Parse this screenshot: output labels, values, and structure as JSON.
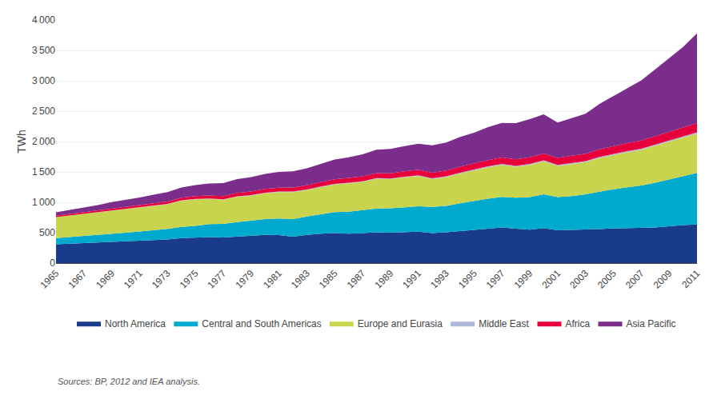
{
  "chart_data": {
    "type": "area",
    "stacked": true,
    "ylabel": "TWh",
    "annotations": [
      "Sources: BP, 2012 and IEA analysis."
    ],
    "x": [
      1965,
      1966,
      1967,
      1968,
      1969,
      1970,
      1971,
      1972,
      1973,
      1974,
      1975,
      1976,
      1977,
      1978,
      1979,
      1980,
      1981,
      1982,
      1983,
      1984,
      1985,
      1986,
      1987,
      1988,
      1989,
      1990,
      1991,
      1992,
      1993,
      1994,
      1995,
      1996,
      1997,
      1998,
      1999,
      2000,
      2001,
      2002,
      2003,
      2004,
      2005,
      2006,
      2007,
      2008,
      2009,
      2010,
      2011
    ],
    "series": [
      {
        "name": "North America",
        "color": "#1a3a8a",
        "values": [
          310,
          320,
          328,
          340,
          350,
          360,
          370,
          382,
          388,
          410,
          415,
          428,
          422,
          438,
          448,
          465,
          460,
          435,
          465,
          485,
          495,
          485,
          495,
          505,
          500,
          505,
          515,
          495,
          505,
          525,
          545,
          570,
          585,
          565,
          550,
          575,
          540,
          545,
          550,
          560,
          570,
          575,
          575,
          585,
          605,
          625,
          635
        ]
      },
      {
        "name": "Central and South Americas",
        "color": "#00a9ce",
        "values": [
          100,
          107,
          114,
          122,
          131,
          140,
          150,
          162,
          174,
          186,
          198,
          212,
          222,
          235,
          248,
          260,
          274,
          288,
          302,
          320,
          343,
          360,
          374,
          392,
          400,
          413,
          420,
          428,
          435,
          458,
          476,
          490,
          503,
          512,
          535,
          558,
          545,
          558,
          582,
          618,
          645,
          672,
          700,
          738,
          775,
          812,
          850
        ]
      },
      {
        "name": "Europe and Eurasia",
        "color": "#c8d44e",
        "values": [
          345,
          355,
          365,
          375,
          385,
          390,
          396,
          400,
          406,
          430,
          436,
          415,
          398,
          418,
          413,
          425,
          435,
          445,
          434,
          445,
          456,
          468,
          468,
          490,
          480,
          492,
          498,
          460,
          475,
          492,
          504,
          517,
          528,
          507,
          530,
          542,
          515,
          530,
          530,
          553,
          565,
          577,
          590,
          608,
          620,
          635,
          647
        ]
      },
      {
        "name": "Middle East",
        "color": "#b0b8d8",
        "values": [
          2,
          2,
          3,
          3,
          4,
          4,
          5,
          5,
          5,
          6,
          6,
          7,
          7,
          7,
          8,
          8,
          8,
          9,
          9,
          9,
          10,
          10,
          10,
          11,
          11,
          11,
          12,
          12,
          12,
          13,
          13,
          14,
          14,
          14,
          15,
          15,
          15,
          15,
          16,
          16,
          16,
          17,
          17,
          17,
          18,
          18,
          18
        ]
      },
      {
        "name": "Africa",
        "color": "#e8003d",
        "values": [
          22,
          24,
          26,
          28,
          30,
          32,
          35,
          38,
          40,
          44,
          47,
          50,
          53,
          56,
          59,
          61,
          64,
          67,
          69,
          72,
          75,
          77,
          80,
          83,
          86,
          88,
          91,
          93,
          95,
          97,
          100,
          103,
          106,
          108,
          111,
          114,
          116,
          119,
          122,
          126,
          129,
          132,
          136,
          140,
          144,
          148,
          153
        ]
      },
      {
        "name": "Asia Pacific",
        "color": "#7b2d8b",
        "values": [
          55,
          65,
          76,
          87,
          102,
          113,
          124,
          139,
          155,
          166,
          182,
          198,
          215,
          226,
          237,
          248,
          259,
          265,
          280,
          302,
          324,
          340,
          362,
          384,
          400,
          416,
          428,
          450,
          462,
          490,
          508,
          543,
          570,
          598,
          626,
          643,
          583,
          618,
          658,
          747,
          823,
          900,
          988,
          1098,
          1208,
          1318,
          1478
        ]
      }
    ],
    "xlim": [
      1965,
      2011
    ],
    "xticks": [
      1965,
      1967,
      1969,
      1971,
      1973,
      1975,
      1977,
      1979,
      1981,
      1983,
      1985,
      1987,
      1989,
      1991,
      1993,
      1995,
      1997,
      1999,
      2001,
      2003,
      2005,
      2007,
      2009,
      2011
    ],
    "ylim": [
      0,
      4000
    ],
    "yticks": [
      0,
      500,
      {
        "value": 1000,
        "label": "1 000"
      },
      {
        "value": 1500,
        "label": "1 500"
      },
      {
        "value": 2000,
        "label": "2 000"
      },
      {
        "value": 2500,
        "label": "2 500"
      },
      {
        "value": 3000,
        "label": "3 000"
      },
      {
        "value": 3500,
        "label": "3 500"
      },
      {
        "value": 4000,
        "label": "4 000"
      }
    ],
    "grid": true,
    "legend": "bottom"
  }
}
